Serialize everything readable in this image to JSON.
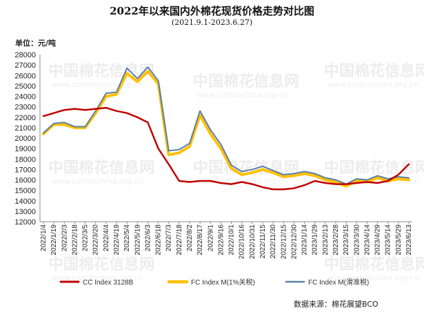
{
  "chart_data": {
    "type": "line",
    "title": "2022年以来国内外棉花现货价格走势对比图",
    "subtitle": "(2021.9.1-2023.6.27)",
    "ylabel": "单位：元/吨",
    "ylim": [
      12000,
      28000
    ],
    "ytick_step": 1000,
    "grid": false,
    "legend_position": "bottom",
    "source": "数据来源：棉花展望BCO",
    "watermark": "中国棉花信息网 www.cottonchina.org.cn",
    "x_labels": [
      "2022/1/4",
      "2022/1/19",
      "2022/2/3",
      "2022/2/18",
      "2022/3/5",
      "2022/3/20",
      "2022/4/4",
      "2022/4/19",
      "2022/5/4",
      "2022/5/19",
      "2022/6/3",
      "2022/6/18",
      "2022/7/3",
      "2022/7/18",
      "2022/8/2",
      "2022/8/17",
      "2022/9/1",
      "2022/9/16",
      "2022/10/1",
      "2022/10/16",
      "2022/10/31",
      "2022/11/15",
      "2022/11/30",
      "2022/12/15",
      "2022/12/30",
      "2023/1/14",
      "2023/1/29",
      "2023/2/13",
      "2023/2/28",
      "2023/3/15",
      "2023/3/30",
      "2023/4/14",
      "2023/4/29",
      "2023/5/14",
      "2023/5/29",
      "2023/6/13"
    ],
    "series": [
      {
        "name": "CC Index 3128B",
        "color": "#C00000",
        "width": 2.5,
        "values": [
          22100,
          22400,
          22700,
          22800,
          22700,
          22800,
          22900,
          22600,
          22400,
          22000,
          21500,
          19000,
          17500,
          15900,
          15800,
          15900,
          15900,
          15700,
          15600,
          15800,
          15600,
          15300,
          15100,
          15100,
          15200,
          15500,
          15900,
          15700,
          15600,
          15600,
          15700,
          15800,
          15700,
          15900,
          16500,
          17500
        ]
      },
      {
        "name": "FC Index M(1%关税)",
        "color": "#FFC000",
        "width": 4,
        "values": [
          20400,
          21300,
          21300,
          21000,
          21000,
          22400,
          24000,
          24200,
          26200,
          25400,
          26400,
          25200,
          18400,
          18600,
          19200,
          22200,
          20400,
          19000,
          17100,
          16500,
          16700,
          17000,
          16700,
          16300,
          16400,
          16600,
          16400,
          16000,
          15800,
          15400,
          15900,
          15800,
          16200,
          15900,
          16100,
          16000
        ]
      },
      {
        "name": "FC Index M(滑准税)",
        "color": "#5B7FA8",
        "width": 2,
        "values": [
          20500,
          21400,
          21500,
          21100,
          21100,
          22600,
          24300,
          24400,
          26700,
          25700,
          26800,
          25500,
          18800,
          18900,
          19500,
          22600,
          20800,
          19400,
          17400,
          16800,
          17000,
          17300,
          16900,
          16500,
          16600,
          16800,
          16600,
          16200,
          16000,
          15600,
          16100,
          16000,
          16400,
          16100,
          16300,
          16200
        ]
      }
    ]
  }
}
